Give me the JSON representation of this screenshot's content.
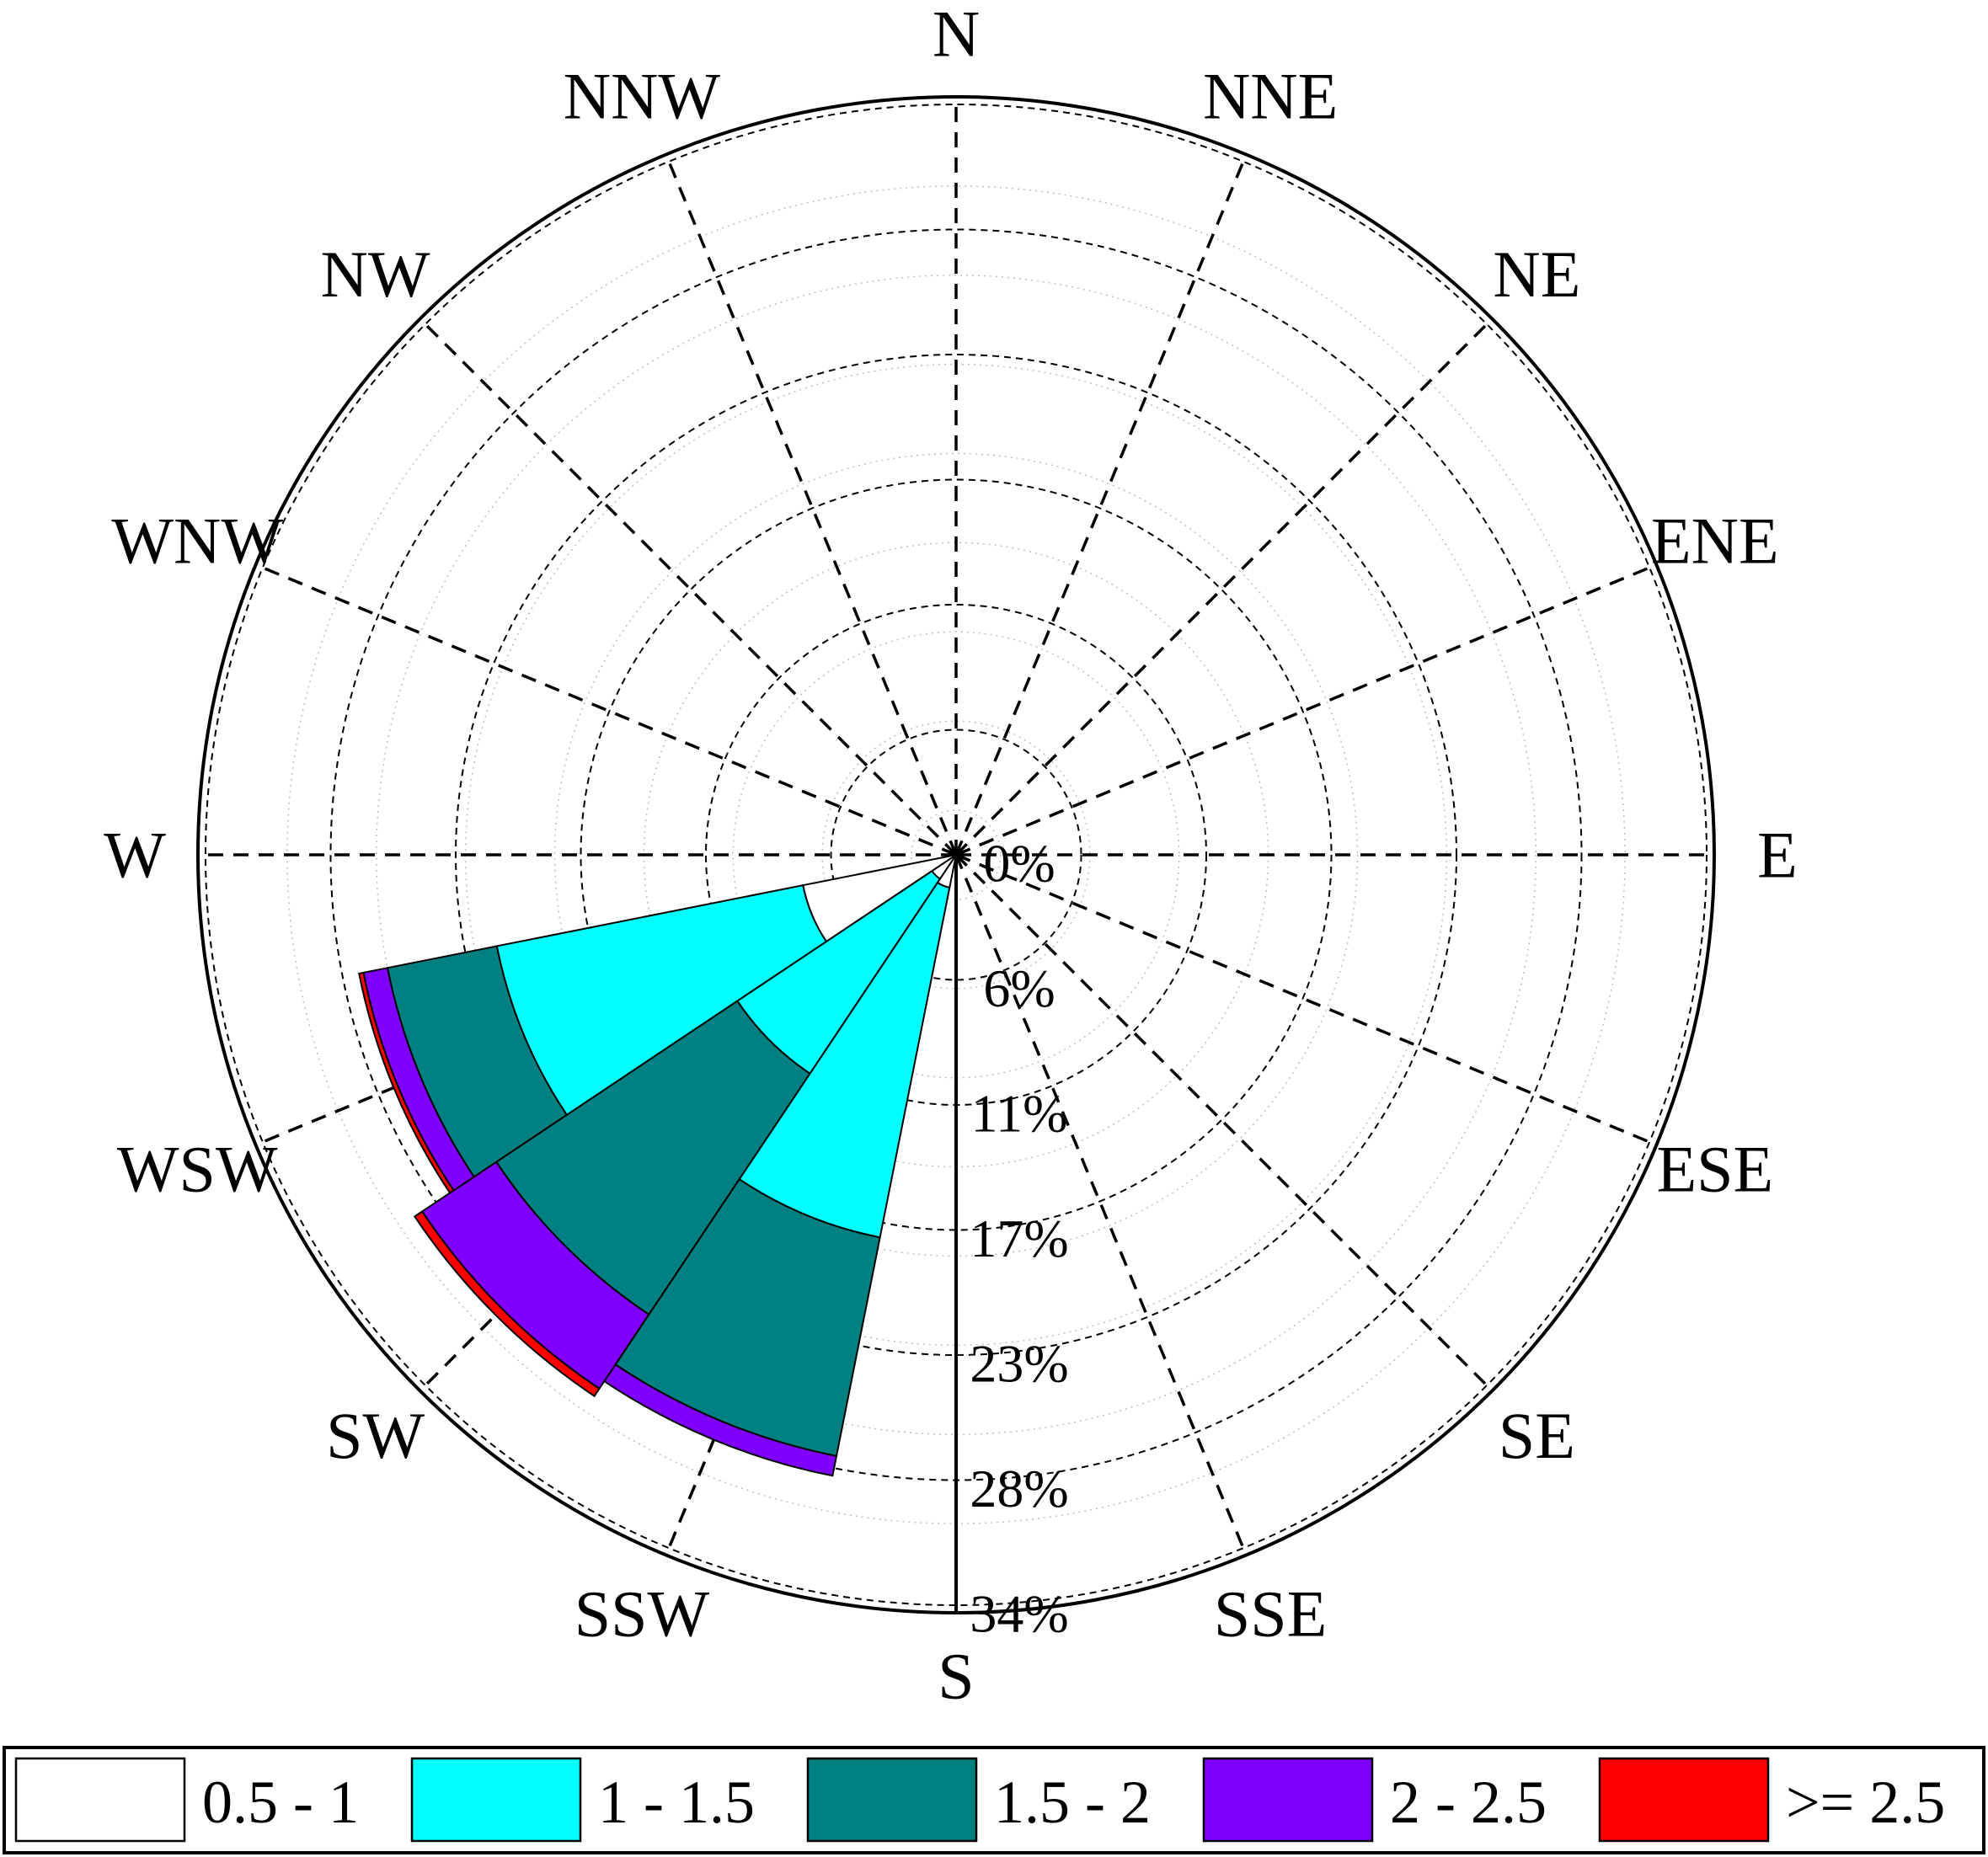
{
  "chart_data": {
    "type": "windrose",
    "directions": [
      "N",
      "NNE",
      "NE",
      "ENE",
      "E",
      "ESE",
      "SE",
      "SSE",
      "S",
      "SSW",
      "SW",
      "WSW",
      "W",
      "WNW",
      "NW",
      "NNW"
    ],
    "radial_ticks": [
      "0%",
      "6%",
      "11%",
      "17%",
      "23%",
      "28%",
      "34%"
    ],
    "radial_max": 34,
    "grid": true,
    "legend_placement": "bottom",
    "bins": [
      {
        "label": "0.5 - 1",
        "color": "#ffffff"
      },
      {
        "label": "1 - 1.5",
        "color": "#00ffff"
      },
      {
        "label": "1.5 - 2",
        "color": "#008080"
      },
      {
        "label": "2 - 2.5",
        "color": "#8000ff"
      },
      {
        "label": ">= 2.5",
        "color": "#ff0000"
      }
    ],
    "sectors": [
      {
        "direction": "SSW",
        "values": [
          1.5,
          16.0,
          10.0,
          0.9,
          0.0
        ]
      },
      {
        "direction": "SW",
        "values": [
          1.3,
          10.5,
          13.0,
          4.0,
          0.4
        ]
      },
      {
        "direction": "WSW",
        "values": [
          7.0,
          14.0,
          5.0,
          1.1,
          0.2
        ]
      }
    ]
  }
}
